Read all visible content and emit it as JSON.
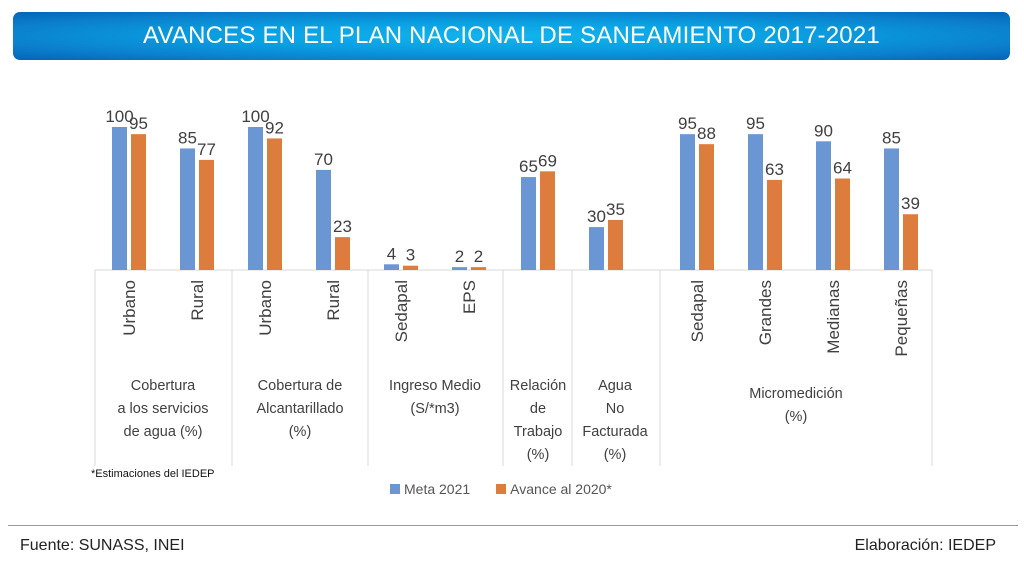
{
  "header": {
    "title": "AVANCES EN EL PLAN NACIONAL DE SANEAMIENTO 2017-2021"
  },
  "colors": {
    "meta": "#6a96d3",
    "avance": "#dc7c3d",
    "title_bg": "#0a8fd8",
    "axis": "#d9d9d9"
  },
  "chart_data": {
    "type": "bar",
    "title": "AVANCES EN EL PLAN NACIONAL DE SANEAMIENTO 2017-2021",
    "xlabel": "",
    "ylabel": "",
    "ylim": [
      0,
      100
    ],
    "grid": false,
    "legend_position": "bottom",
    "groups": [
      {
        "label_lines": [
          "Cobertura",
          "a los servicios",
          "de agua (%)"
        ],
        "categories": [
          "Urbano",
          "Rural"
        ]
      },
      {
        "label_lines": [
          "Cobertura de",
          "Alcantarillado",
          "(%)"
        ],
        "categories": [
          "Urbano",
          "Rural"
        ]
      },
      {
        "label_lines": [
          "Ingreso Medio",
          "(S/*m3)"
        ],
        "categories": [
          "Sedapal",
          "EPS"
        ]
      },
      {
        "label_lines": [
          "Relación",
          "de",
          "Trabajo",
          "(%)"
        ],
        "categories": [
          ""
        ]
      },
      {
        "label_lines": [
          "Agua",
          "No",
          "Facturada",
          "(%)"
        ],
        "categories": [
          ""
        ]
      },
      {
        "label_lines": [
          "Micromedición",
          "(%)"
        ],
        "categories": [
          "Sedapal",
          "Grandes",
          "Medianas",
          "Pequeñas"
        ]
      }
    ],
    "categories": [
      "Urbano",
      "Rural",
      "Urbano",
      "Rural",
      "Sedapal",
      "EPS",
      "",
      "",
      "Sedapal",
      "Grandes",
      "Medianas",
      "Pequeñas"
    ],
    "series": [
      {
        "name": "Meta 2021",
        "values": [
          100,
          85,
          100,
          70,
          4,
          2,
          65,
          30,
          95,
          95,
          90,
          85
        ]
      },
      {
        "name": "Avance al 2020*",
        "values": [
          95,
          77,
          92,
          23,
          3,
          2,
          69,
          35,
          88,
          63,
          64,
          39
        ]
      }
    ]
  },
  "legend": {
    "meta_label": "Meta 2021",
    "avance_label": "Avance al 2020*"
  },
  "note": "*Estimaciones del IEDEP",
  "footer": {
    "source": "Fuente: SUNASS, INEI",
    "credit": "Elaboración: IEDEP"
  }
}
